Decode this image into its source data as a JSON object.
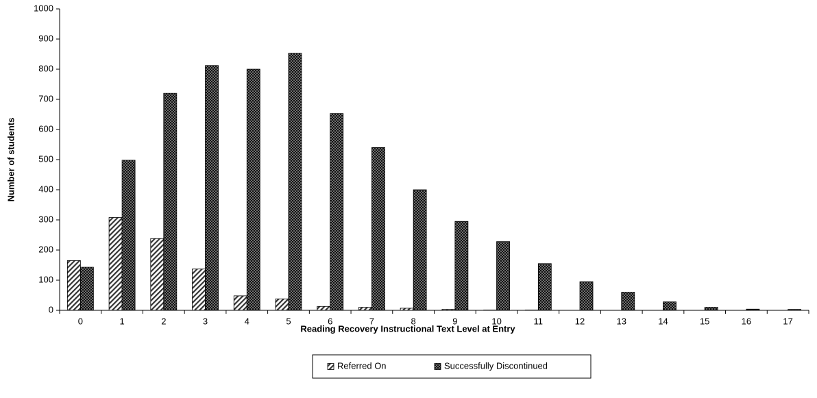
{
  "chart_data": {
    "type": "bar",
    "xlabel": "Reading Recovery Instructional Text Level at Entry",
    "ylabel": "Number of students",
    "categories": [
      "0",
      "1",
      "2",
      "3",
      "4",
      "5",
      "6",
      "7",
      "8",
      "9",
      "10",
      "11",
      "12",
      "13",
      "14",
      "15",
      "16",
      "17"
    ],
    "series": [
      {
        "name": "Referred On",
        "color": "#333333",
        "pattern": "diagonal",
        "values": [
          165,
          308,
          238,
          137,
          48,
          38,
          13,
          10,
          7,
          3,
          1,
          1,
          0,
          0,
          0,
          0,
          0,
          0
        ]
      },
      {
        "name": "Successfully Discontinued",
        "color": "#111111",
        "pattern": "dots",
        "values": [
          143,
          498,
          720,
          812,
          800,
          853,
          653,
          540,
          400,
          295,
          228,
          155,
          95,
          60,
          28,
          10,
          4,
          3
        ]
      }
    ],
    "ylim": [
      0,
      1000
    ],
    "yticks": [
      0,
      100,
      200,
      300,
      400,
      500,
      600,
      700,
      800,
      900,
      1000
    ],
    "grid": false,
    "legend": "bottom"
  }
}
